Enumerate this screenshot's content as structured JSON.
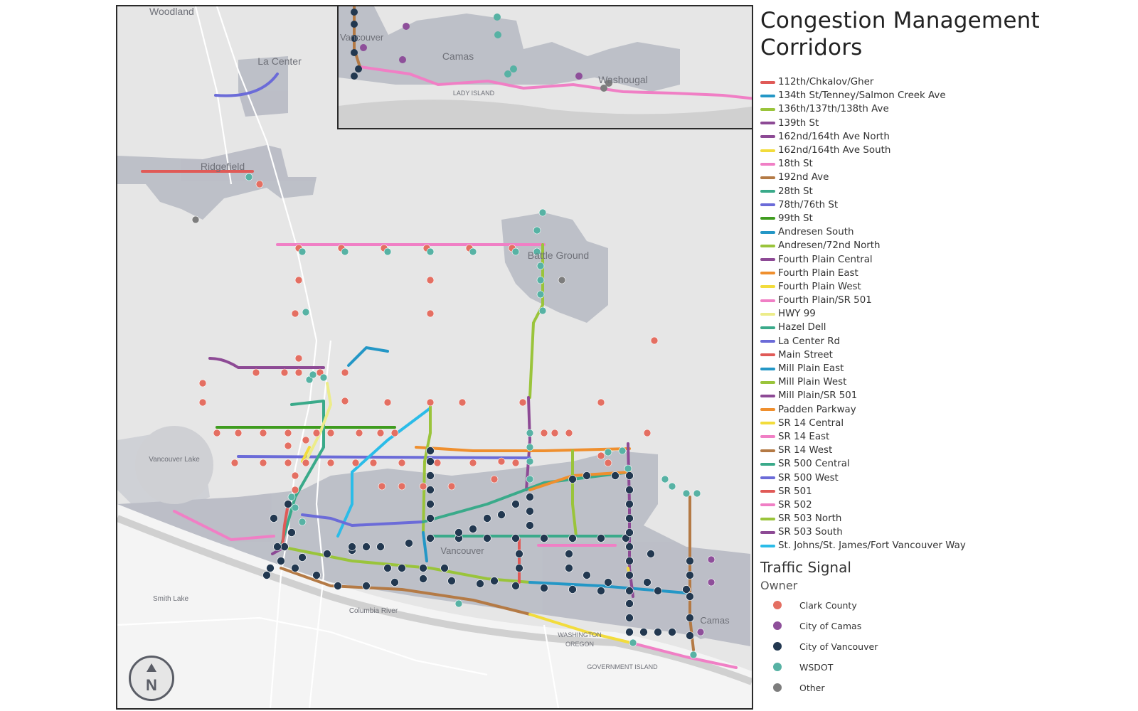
{
  "title": "Congestion Management Corridors",
  "map": {
    "places": [
      {
        "name": "Woodland"
      },
      {
        "name": "La Center"
      },
      {
        "name": "Ridgefield"
      },
      {
        "name": "Battle Ground"
      },
      {
        "name": "Vancouver Lake"
      },
      {
        "name": "Vancouver"
      },
      {
        "name": "Smith Lake"
      },
      {
        "name": "Columbia River"
      },
      {
        "name": "WASHINGTON"
      },
      {
        "name": "OREGON"
      },
      {
        "name": "GOVERNMENT ISLAND"
      },
      {
        "name": "Camas"
      }
    ],
    "inset_places": [
      {
        "name": "Vancouver"
      },
      {
        "name": "Camas"
      },
      {
        "name": "LADY ISLAND"
      },
      {
        "name": "Washougal"
      }
    ],
    "north_arrow": {
      "icon": "north-arrow-icon",
      "label": "N"
    }
  },
  "legend": {
    "corridors": [
      {
        "name": "112th/Chkalov/Gher",
        "color": "#e05a57"
      },
      {
        "name": "134th St/Tenney/Salmon Creek Ave",
        "color": "#2497c6"
      },
      {
        "name": "136th/137th/138th Ave",
        "color": "#9ac43b"
      },
      {
        "name": "139th St",
        "color": "#8d4a95"
      },
      {
        "name": "162nd/164th Ave North",
        "color": "#8d4a95"
      },
      {
        "name": "162nd/164th Ave South",
        "color": "#f2dc3c"
      },
      {
        "name": "18th St",
        "color": "#f07fc5"
      },
      {
        "name": "192nd Ave",
        "color": "#b47a45"
      },
      {
        "name": "28th St",
        "color": "#3aaa8a"
      },
      {
        "name": "78th/76th St",
        "color": "#6b6bd8"
      },
      {
        "name": "99th St",
        "color": "#3f9c1f"
      },
      {
        "name": "Andresen South",
        "color": "#2497c6"
      },
      {
        "name": "Andresen/72nd  North",
        "color": "#9ac43b"
      },
      {
        "name": "Fourth Plain Central",
        "color": "#8d4a95"
      },
      {
        "name": "Fourth Plain East",
        "color": "#ef8f2e"
      },
      {
        "name": "Fourth Plain West",
        "color": "#f2dc3c"
      },
      {
        "name": "Fourth Plain/SR 501",
        "color": "#f07fc5"
      },
      {
        "name": "HWY 99",
        "color": "#ecec8a"
      },
      {
        "name": "Hazel Dell",
        "color": "#3aaa8a"
      },
      {
        "name": "La Center Rd",
        "color": "#6b6bd8"
      },
      {
        "name": "Main Street",
        "color": "#e05a57"
      },
      {
        "name": "Mill Plain East",
        "color": "#2497c6"
      },
      {
        "name": "Mill Plain West",
        "color": "#9ac43b"
      },
      {
        "name": "Mill Plain/SR 501",
        "color": "#8d4a95"
      },
      {
        "name": "Padden Parkway",
        "color": "#ef8f2e"
      },
      {
        "name": "SR 14 Central",
        "color": "#f2dc3c"
      },
      {
        "name": "SR 14 East",
        "color": "#f07fc5"
      },
      {
        "name": "SR 14 West",
        "color": "#b47a45"
      },
      {
        "name": "SR 500 Central",
        "color": "#3aaa8a"
      },
      {
        "name": "SR 500 West",
        "color": "#6b6bd8"
      },
      {
        "name": "SR 501",
        "color": "#e05a57"
      },
      {
        "name": "SR 502",
        "color": "#f07fc5"
      },
      {
        "name": "SR 503 North",
        "color": "#9ac43b"
      },
      {
        "name": "SR 503 South",
        "color": "#8d4a95"
      },
      {
        "name": "St. Johns/St. James/Fort Vancouver Way",
        "color": "#2bbce8"
      }
    ],
    "signal_title": "Traffic Signal",
    "owner_title": "Owner",
    "owners": [
      {
        "name": "Clark County",
        "color": "#e46f62"
      },
      {
        "name": "City of Camas",
        "color": "#8e4f9a"
      },
      {
        "name": "City of Vancouver",
        "color": "#223850"
      },
      {
        "name": "WSDOT",
        "color": "#57b2a4"
      },
      {
        "name": "Other",
        "color": "#7d7d7d"
      }
    ]
  }
}
